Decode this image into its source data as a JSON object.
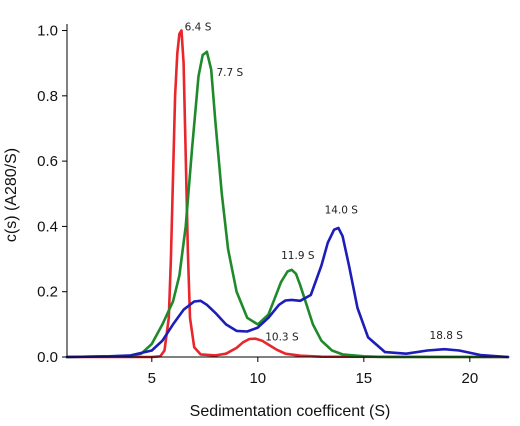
{
  "chart_data": {
    "type": "line",
    "xlabel": "Sedimentation coefficent (S)",
    "ylabel": "c(s) (A280/S)",
    "xlim": [
      1,
      21.8
    ],
    "ylim": [
      0,
      1.02
    ],
    "xticks": [
      5,
      10,
      15,
      20
    ],
    "yticks": [
      0,
      0.2,
      0.4,
      0.6,
      0.8,
      1.0
    ],
    "ytick_labels": [
      "0.0",
      "0.2",
      "0.4",
      "0.6",
      "0.8",
      "1.0"
    ],
    "grid": false,
    "legend": "none",
    "series": [
      {
        "color": "#e8262b",
        "x": [
          1.0,
          5.0,
          5.4,
          5.6,
          5.8,
          5.9,
          6.0,
          6.1,
          6.2,
          6.3,
          6.4,
          6.5,
          6.6,
          6.7,
          6.8,
          7.0,
          7.3,
          8.0,
          8.5,
          9.0,
          9.3,
          9.6,
          9.9,
          10.2,
          10.5,
          10.9,
          11.3,
          12.0,
          13.0,
          21.8
        ],
        "y": [
          0.0,
          0.0,
          0.002,
          0.02,
          0.12,
          0.3,
          0.55,
          0.8,
          0.93,
          0.99,
          1.0,
          0.9,
          0.62,
          0.32,
          0.12,
          0.03,
          0.008,
          0.005,
          0.01,
          0.028,
          0.045,
          0.055,
          0.056,
          0.05,
          0.038,
          0.022,
          0.01,
          0.004,
          0.001,
          0.0
        ]
      },
      {
        "color": "#1f8a2b",
        "x": [
          1.0,
          4.0,
          4.5,
          5.0,
          5.5,
          6.0,
          6.3,
          6.6,
          6.9,
          7.2,
          7.4,
          7.6,
          7.8,
          8.0,
          8.3,
          8.6,
          9.0,
          9.5,
          10.0,
          10.5,
          10.8,
          11.1,
          11.4,
          11.6,
          11.8,
          12.0,
          12.3,
          12.6,
          13.0,
          13.5,
          14.0,
          15.0,
          16.0,
          21.8
        ],
        "y": [
          0.0,
          0.003,
          0.01,
          0.04,
          0.1,
          0.17,
          0.25,
          0.4,
          0.64,
          0.86,
          0.925,
          0.935,
          0.88,
          0.72,
          0.5,
          0.33,
          0.2,
          0.12,
          0.1,
          0.13,
          0.18,
          0.23,
          0.262,
          0.267,
          0.255,
          0.22,
          0.16,
          0.1,
          0.05,
          0.02,
          0.008,
          0.002,
          0.0,
          0.0
        ]
      },
      {
        "color": "#1d1db8",
        "x": [
          1.0,
          3.0,
          4.0,
          5.0,
          5.5,
          6.0,
          6.5,
          7.0,
          7.3,
          7.6,
          8.0,
          8.5,
          9.0,
          9.5,
          10.0,
          10.5,
          11.0,
          11.3,
          11.6,
          12.0,
          12.5,
          13.0,
          13.3,
          13.6,
          13.8,
          14.0,
          14.3,
          14.7,
          15.2,
          16.0,
          17.0,
          18.0,
          18.8,
          19.5,
          20.5,
          21.8
        ],
        "y": [
          0.0,
          0.002,
          0.005,
          0.02,
          0.05,
          0.1,
          0.145,
          0.17,
          0.172,
          0.16,
          0.135,
          0.1,
          0.08,
          0.078,
          0.09,
          0.12,
          0.16,
          0.173,
          0.175,
          0.172,
          0.19,
          0.28,
          0.35,
          0.39,
          0.395,
          0.37,
          0.28,
          0.15,
          0.06,
          0.015,
          0.01,
          0.02,
          0.024,
          0.02,
          0.006,
          0.0
        ]
      }
    ],
    "annotations": [
      {
        "text": "6.4 S",
        "x": 6.55,
        "y": 1.0
      },
      {
        "text": "7.7 S",
        "x": 8.05,
        "y": 0.86
      },
      {
        "text": "11.9 S",
        "x": 11.1,
        "y": 0.3
      },
      {
        "text": "14.0 S",
        "x": 13.15,
        "y": 0.44
      },
      {
        "text": "10.3 S",
        "x": 10.35,
        "y": 0.05
      },
      {
        "text": "18.8 S",
        "x": 18.1,
        "y": 0.055
      }
    ]
  }
}
